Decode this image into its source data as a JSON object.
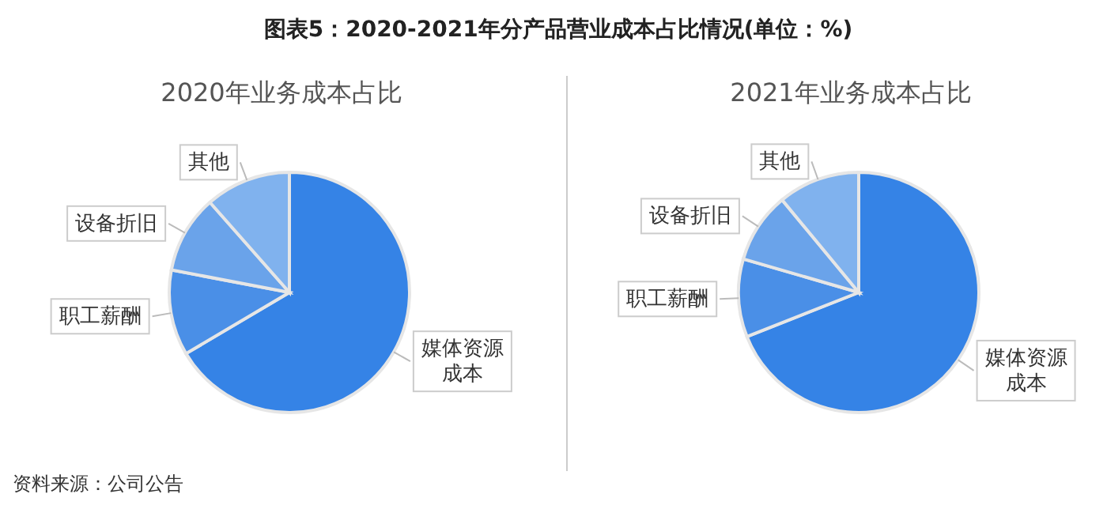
{
  "chart_data": [
    {
      "type": "pie",
      "title": "2020年业务成本占比",
      "categories": [
        "媒体资源成本",
        "职工薪酬",
        "设备折旧",
        "其他"
      ],
      "values": [
        66.5,
        11.5,
        10.5,
        11.5
      ],
      "colors": [
        "#3583e6",
        "#4a8fe7",
        "#6aa3ea",
        "#80b2ee"
      ],
      "annotations": [
        "图表5：2020-2021年分产品营业成本占比情况(单位：%)",
        "资料来源：公司公告"
      ]
    },
    {
      "type": "pie",
      "title": "2021年业务成本占比",
      "categories": [
        "媒体资源成本",
        "职工薪酬",
        "设备折旧",
        "其他"
      ],
      "values": [
        69,
        10.5,
        9.5,
        11
      ],
      "colors": [
        "#3583e6",
        "#4a8fe7",
        "#6aa3ea",
        "#80b2ee"
      ]
    }
  ]
}
